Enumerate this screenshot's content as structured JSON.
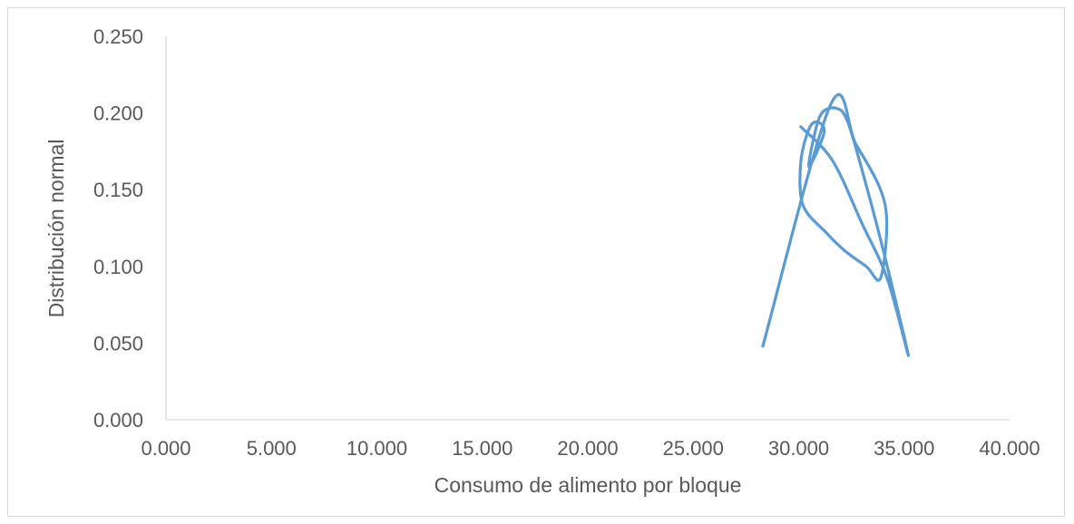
{
  "chart_data": {
    "type": "line",
    "title": "",
    "xlabel": "Consumo de alimento por bloque",
    "ylabel": "Distribución normal",
    "xlim": [
      0,
      40
    ],
    "ylim": [
      0,
      0.25
    ],
    "x_ticks": [
      "0.000",
      "5.000",
      "10.000",
      "15.000",
      "20.000",
      "25.000",
      "30.000",
      "35.000",
      "40.000"
    ],
    "y_ticks": [
      "0.000",
      "0.050",
      "0.100",
      "0.150",
      "0.200",
      "0.250"
    ],
    "grid": false,
    "legend": "none",
    "series": [
      {
        "color": "#5b9bd5",
        "x": [
          28.3,
          31.5,
          32.7,
          34.1,
          33.9,
          33.2,
          32.2,
          31.3,
          30.2,
          30.1,
          30.5,
          30.9,
          31.2,
          30.5,
          30.7,
          31.1,
          31.8,
          32.3,
          33.0,
          34.0,
          35.2,
          34.2,
          33.0,
          31.6,
          30.1
        ],
        "y": [
          0.048,
          0.205,
          0.18,
          0.14,
          0.093,
          0.1,
          0.11,
          0.122,
          0.14,
          0.168,
          0.19,
          0.194,
          0.187,
          0.165,
          0.183,
          0.2,
          0.203,
          0.195,
          0.163,
          0.111,
          0.042,
          0.092,
          0.128,
          0.169,
          0.191
        ]
      }
    ]
  }
}
